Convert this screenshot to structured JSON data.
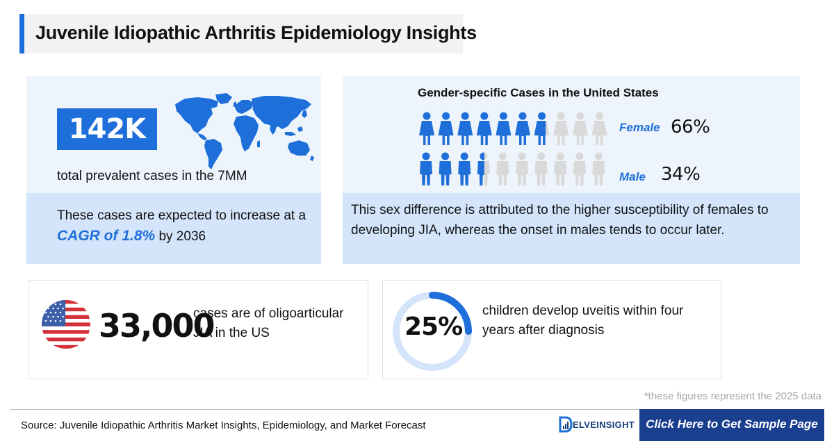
{
  "title": "Juvenile Idiopathic Arthritis Epidemiology Insights",
  "prevalence": {
    "value": "142K",
    "subtitle": "total prevalent cases in the 7MM",
    "text_before": "These cases are expected to increase at a ",
    "cagr": "CAGR of 1.8%",
    "text_after": " by 2036",
    "map_icon": "world-map-icon"
  },
  "gender": {
    "title": "Gender-specific Cases in the United States",
    "female": {
      "label": "Female",
      "value": "66%",
      "fraction": 0.66,
      "icon": "female-person-icon"
    },
    "male": {
      "label": "Male",
      "value": "34%",
      "fraction": 0.34,
      "icon": "male-person-icon"
    },
    "note": "This sex difference is attributed to the higher susceptibility of females to developing JIA, whereas the onset in males tends to occur later."
  },
  "oligo": {
    "value": "33,000",
    "text": "cases are of oligoarticular JIA in the US",
    "flag_icon": "us-flag-icon"
  },
  "uveitis": {
    "value": "25%",
    "fraction": 0.25,
    "text": "children develop uveitis within four years after diagnosis"
  },
  "footnote": "*these figures represent the 2025 data",
  "source": "Source: Juvenile Idiopathic Arthritis Market Insights, Epidemiology, and Market Forecast",
  "logo_text": "ELVEINSIGHT",
  "cta_label": "Click Here to Get Sample Page",
  "colors": {
    "accent": "#1e6fd9",
    "light_panel": "#eef4fc",
    "mid_panel": "#d3e4fb",
    "inactive_icon": "#d9d9d9",
    "cta": "#1a3f8f"
  }
}
